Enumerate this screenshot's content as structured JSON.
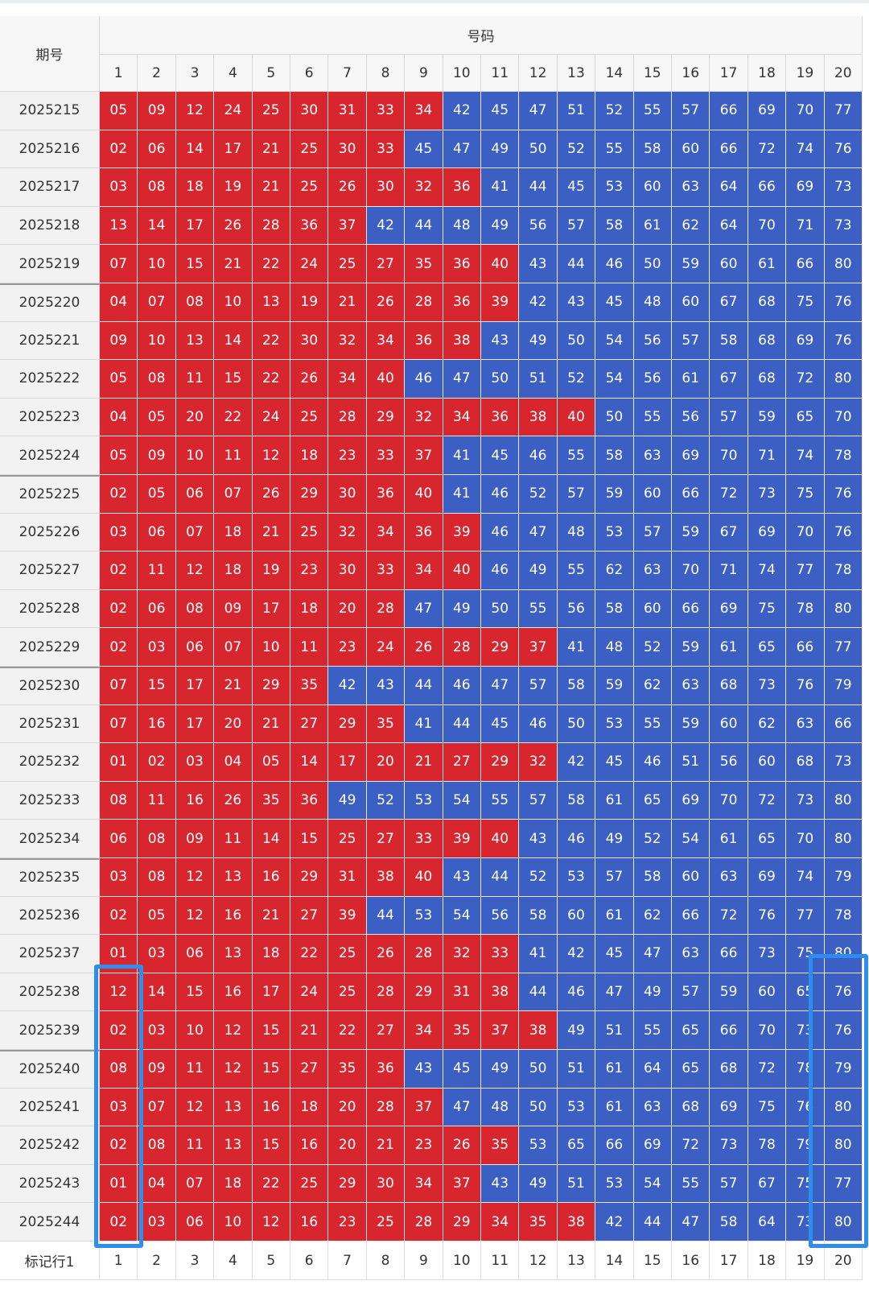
{
  "table": {
    "header": {
      "period": "期号",
      "numbers": "号码"
    },
    "columns": [
      1,
      2,
      3,
      4,
      5,
      6,
      7,
      8,
      9,
      10,
      11,
      12,
      13,
      14,
      15,
      16,
      17,
      18,
      19,
      20
    ],
    "rows": [
      {
        "period": "2025215",
        "numbers": [
          "05",
          "09",
          "12",
          "24",
          "25",
          "30",
          "31",
          "33",
          "34",
          "42",
          "45",
          "47",
          "51",
          "52",
          "55",
          "57",
          "66",
          "69",
          "70",
          "77"
        ]
      },
      {
        "period": "2025216",
        "numbers": [
          "02",
          "06",
          "14",
          "17",
          "21",
          "25",
          "30",
          "33",
          "45",
          "47",
          "49",
          "50",
          "52",
          "55",
          "58",
          "60",
          "66",
          "72",
          "74",
          "76"
        ]
      },
      {
        "period": "2025217",
        "numbers": [
          "03",
          "08",
          "18",
          "19",
          "21",
          "25",
          "26",
          "30",
          "32",
          "36",
          "41",
          "44",
          "45",
          "53",
          "60",
          "63",
          "64",
          "66",
          "69",
          "73"
        ]
      },
      {
        "period": "2025218",
        "numbers": [
          "13",
          "14",
          "17",
          "26",
          "28",
          "36",
          "37",
          "42",
          "44",
          "48",
          "49",
          "56",
          "57",
          "58",
          "61",
          "62",
          "64",
          "70",
          "71",
          "73"
        ]
      },
      {
        "period": "2025219",
        "numbers": [
          "07",
          "10",
          "15",
          "21",
          "22",
          "24",
          "25",
          "27",
          "35",
          "36",
          "40",
          "43",
          "44",
          "46",
          "50",
          "59",
          "60",
          "61",
          "66",
          "80"
        ]
      },
      {
        "period": "2025220",
        "numbers": [
          "04",
          "07",
          "08",
          "10",
          "13",
          "19",
          "21",
          "26",
          "28",
          "36",
          "39",
          "42",
          "43",
          "45",
          "48",
          "60",
          "67",
          "68",
          "75",
          "76"
        ]
      },
      {
        "period": "2025221",
        "numbers": [
          "09",
          "10",
          "13",
          "14",
          "22",
          "30",
          "32",
          "34",
          "36",
          "38",
          "43",
          "49",
          "50",
          "54",
          "56",
          "57",
          "58",
          "68",
          "69",
          "76"
        ]
      },
      {
        "period": "2025222",
        "numbers": [
          "05",
          "08",
          "11",
          "15",
          "22",
          "26",
          "34",
          "40",
          "46",
          "47",
          "50",
          "51",
          "52",
          "54",
          "56",
          "61",
          "67",
          "68",
          "72",
          "80"
        ]
      },
      {
        "period": "2025223",
        "numbers": [
          "04",
          "05",
          "20",
          "22",
          "24",
          "25",
          "28",
          "29",
          "32",
          "34",
          "36",
          "38",
          "40",
          "50",
          "55",
          "56",
          "57",
          "59",
          "65",
          "70"
        ]
      },
      {
        "period": "2025224",
        "numbers": [
          "05",
          "09",
          "10",
          "11",
          "12",
          "18",
          "23",
          "33",
          "37",
          "41",
          "45",
          "46",
          "55",
          "58",
          "63",
          "69",
          "70",
          "71",
          "74",
          "78"
        ]
      },
      {
        "period": "2025225",
        "numbers": [
          "02",
          "05",
          "06",
          "07",
          "26",
          "29",
          "30",
          "36",
          "40",
          "41",
          "46",
          "52",
          "57",
          "59",
          "60",
          "66",
          "72",
          "73",
          "75",
          "76"
        ]
      },
      {
        "period": "2025226",
        "numbers": [
          "03",
          "06",
          "07",
          "18",
          "21",
          "25",
          "32",
          "34",
          "36",
          "39",
          "46",
          "47",
          "48",
          "53",
          "57",
          "59",
          "67",
          "69",
          "70",
          "76"
        ]
      },
      {
        "period": "2025227",
        "numbers": [
          "02",
          "11",
          "12",
          "18",
          "19",
          "23",
          "30",
          "33",
          "34",
          "40",
          "46",
          "49",
          "55",
          "62",
          "63",
          "70",
          "71",
          "74",
          "77",
          "78"
        ]
      },
      {
        "period": "2025228",
        "numbers": [
          "02",
          "06",
          "08",
          "09",
          "17",
          "18",
          "20",
          "28",
          "47",
          "49",
          "50",
          "55",
          "56",
          "58",
          "60",
          "66",
          "69",
          "75",
          "78",
          "80"
        ]
      },
      {
        "period": "2025229",
        "numbers": [
          "02",
          "03",
          "06",
          "07",
          "10",
          "11",
          "23",
          "24",
          "26",
          "28",
          "29",
          "37",
          "41",
          "48",
          "52",
          "59",
          "61",
          "65",
          "66",
          "77"
        ]
      },
      {
        "period": "2025230",
        "numbers": [
          "07",
          "15",
          "17",
          "21",
          "29",
          "35",
          "42",
          "43",
          "44",
          "46",
          "47",
          "57",
          "58",
          "59",
          "62",
          "63",
          "68",
          "73",
          "76",
          "79"
        ]
      },
      {
        "period": "2025231",
        "numbers": [
          "07",
          "16",
          "17",
          "20",
          "21",
          "27",
          "29",
          "35",
          "41",
          "44",
          "45",
          "46",
          "50",
          "53",
          "55",
          "59",
          "60",
          "62",
          "63",
          "66"
        ]
      },
      {
        "period": "2025232",
        "numbers": [
          "01",
          "02",
          "03",
          "04",
          "05",
          "14",
          "17",
          "20",
          "21",
          "27",
          "29",
          "32",
          "42",
          "45",
          "46",
          "51",
          "56",
          "60",
          "68",
          "73"
        ]
      },
      {
        "period": "2025233",
        "numbers": [
          "08",
          "11",
          "16",
          "26",
          "35",
          "36",
          "49",
          "52",
          "53",
          "54",
          "55",
          "57",
          "58",
          "61",
          "65",
          "69",
          "70",
          "72",
          "73",
          "80"
        ]
      },
      {
        "period": "2025234",
        "numbers": [
          "06",
          "08",
          "09",
          "11",
          "14",
          "15",
          "25",
          "27",
          "33",
          "39",
          "40",
          "43",
          "46",
          "49",
          "52",
          "54",
          "61",
          "65",
          "70",
          "80"
        ]
      },
      {
        "period": "2025235",
        "numbers": [
          "03",
          "08",
          "12",
          "13",
          "16",
          "29",
          "31",
          "38",
          "40",
          "43",
          "44",
          "52",
          "53",
          "57",
          "58",
          "60",
          "63",
          "69",
          "74",
          "79"
        ]
      },
      {
        "period": "2025236",
        "numbers": [
          "02",
          "05",
          "12",
          "16",
          "21",
          "27",
          "39",
          "44",
          "53",
          "54",
          "56",
          "58",
          "60",
          "61",
          "62",
          "66",
          "72",
          "76",
          "77",
          "78"
        ]
      },
      {
        "period": "2025237",
        "numbers": [
          "01",
          "03",
          "06",
          "13",
          "18",
          "22",
          "25",
          "26",
          "28",
          "32",
          "33",
          "41",
          "42",
          "45",
          "47",
          "63",
          "66",
          "73",
          "75",
          "80"
        ]
      },
      {
        "period": "2025238",
        "numbers": [
          "12",
          "14",
          "15",
          "16",
          "17",
          "24",
          "25",
          "28",
          "29",
          "31",
          "38",
          "44",
          "46",
          "47",
          "49",
          "57",
          "59",
          "60",
          "65",
          "76"
        ]
      },
      {
        "period": "2025239",
        "numbers": [
          "02",
          "03",
          "10",
          "12",
          "15",
          "21",
          "22",
          "27",
          "34",
          "35",
          "37",
          "38",
          "49",
          "51",
          "55",
          "65",
          "66",
          "70",
          "73",
          "76"
        ]
      },
      {
        "period": "2025240",
        "numbers": [
          "08",
          "09",
          "11",
          "12",
          "15",
          "27",
          "35",
          "36",
          "43",
          "45",
          "49",
          "50",
          "51",
          "61",
          "64",
          "65",
          "68",
          "72",
          "78",
          "79"
        ]
      },
      {
        "period": "2025241",
        "numbers": [
          "03",
          "07",
          "12",
          "13",
          "16",
          "18",
          "20",
          "28",
          "37",
          "47",
          "48",
          "50",
          "53",
          "61",
          "63",
          "68",
          "69",
          "75",
          "76",
          "80"
        ]
      },
      {
        "period": "2025242",
        "numbers": [
          "02",
          "08",
          "11",
          "13",
          "15",
          "16",
          "20",
          "21",
          "23",
          "26",
          "35",
          "53",
          "65",
          "66",
          "69",
          "72",
          "73",
          "78",
          "79",
          "80"
        ]
      },
      {
        "period": "2025243",
        "numbers": [
          "01",
          "04",
          "07",
          "18",
          "22",
          "25",
          "29",
          "30",
          "34",
          "37",
          "43",
          "49",
          "51",
          "53",
          "54",
          "55",
          "57",
          "67",
          "75",
          "77"
        ]
      },
      {
        "period": "2025244",
        "numbers": [
          "02",
          "03",
          "06",
          "10",
          "12",
          "16",
          "23",
          "25",
          "28",
          "29",
          "34",
          "35",
          "38",
          "42",
          "44",
          "47",
          "58",
          "64",
          "73",
          "80"
        ]
      }
    ],
    "footer": {
      "label": "标记行1",
      "marks": [
        1,
        2,
        3,
        4,
        5,
        6,
        7,
        8,
        9,
        10,
        11,
        12,
        13,
        14,
        15,
        16,
        17,
        18,
        19,
        20
      ]
    },
    "colors": {
      "low": "#d8262f",
      "high": "#3c5fc4"
    },
    "low_max": 40
  }
}
